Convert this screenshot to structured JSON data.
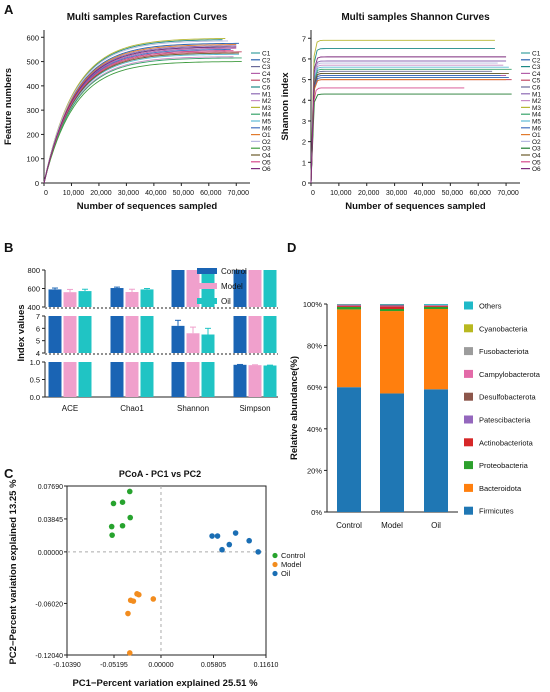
{
  "panel_letters": {
    "A": "A",
    "B": "B",
    "C": "C",
    "D": "D"
  },
  "chart_data": [
    {
      "panel": "A-left",
      "type": "line",
      "title": "Multi samples Rarefaction Curves",
      "xlabel": "Number of sequences sampled",
      "ylabel": "Feature numbers",
      "xticks": [
        "0",
        "10,000",
        "20,000",
        "30,000",
        "40,000",
        "50,000",
        "60,000",
        "70,000"
      ],
      "xtick_values": [
        0,
        10000,
        20000,
        30000,
        40000,
        50000,
        60000,
        70000
      ],
      "yticks": [
        "0",
        "100",
        "200",
        "300",
        "400",
        "500",
        "600"
      ],
      "ytick_values": [
        0,
        100,
        200,
        300,
        400,
        500,
        600
      ],
      "xlim": [
        0,
        75000
      ],
      "ylim": [
        0,
        630
      ],
      "series": [
        {
          "name": "C1",
          "color": "#3aa0a0",
          "max_x": 68000,
          "final": 560
        },
        {
          "name": "C2",
          "color": "#2a63b0",
          "max_x": 71000,
          "final": 575
        },
        {
          "name": "C3",
          "color": "#6a6a9a",
          "max_x": 66000,
          "final": 545
        },
        {
          "name": "C4",
          "color": "#b25fa9",
          "max_x": 70000,
          "final": 555
        },
        {
          "name": "C5",
          "color": "#c24a64",
          "max_x": 72000,
          "final": 540
        },
        {
          "name": "C6",
          "color": "#1d8a86",
          "max_x": 65000,
          "final": 590
        },
        {
          "name": "M1",
          "color": "#8e6ab4",
          "max_x": 70000,
          "final": 565
        },
        {
          "name": "M2",
          "color": "#c78cc5",
          "max_x": 69000,
          "final": 520
        },
        {
          "name": "M3",
          "color": "#b7b733",
          "max_x": 66000,
          "final": 595
        },
        {
          "name": "M4",
          "color": "#37a36a",
          "max_x": 72000,
          "final": 515
        },
        {
          "name": "M5",
          "color": "#5db9d4",
          "max_x": 71000,
          "final": 530
        },
        {
          "name": "M6",
          "color": "#436fbf",
          "max_x": 68000,
          "final": 550
        },
        {
          "name": "O1",
          "color": "#e17a2c",
          "max_x": 70000,
          "final": 570
        },
        {
          "name": "O2",
          "color": "#b8b8e0",
          "max_x": 67000,
          "final": 585
        },
        {
          "name": "O3",
          "color": "#3f9b3f",
          "max_x": 72000,
          "final": 500
        },
        {
          "name": "O4",
          "color": "#6b5a2a",
          "max_x": 71000,
          "final": 535
        },
        {
          "name": "O5",
          "color": "#d54a8c",
          "max_x": 69000,
          "final": 545
        },
        {
          "name": "O6",
          "color": "#7c2b7c",
          "max_x": 70000,
          "final": 560
        }
      ]
    },
    {
      "panel": "A-right",
      "type": "line",
      "title": "Multi samples Shannon Curves",
      "xlabel": "Number of sequences sampled",
      "ylabel": "Shannon index",
      "xticks": [
        "0",
        "10,000",
        "20,000",
        "30,000",
        "40,000",
        "50,000",
        "60,000",
        "70,000"
      ],
      "xtick_values": [
        0,
        10000,
        20000,
        30000,
        40000,
        50000,
        60000,
        70000
      ],
      "yticks": [
        "0",
        "1",
        "2",
        "3",
        "4",
        "5",
        "6",
        "7"
      ],
      "ytick_values": [
        0,
        1,
        2,
        3,
        4,
        5,
        6,
        7
      ],
      "xlim": [
        0,
        75000
      ],
      "ylim": [
        0,
        7.4
      ],
      "series": [
        {
          "name": "C1",
          "color": "#3aa0a0",
          "max_x": 68000,
          "final": 5.3
        },
        {
          "name": "C2",
          "color": "#2a63b0",
          "max_x": 71000,
          "final": 5.1
        },
        {
          "name": "C3",
          "color": "#1d8a86",
          "max_x": 66000,
          "final": 6.5
        },
        {
          "name": "C4",
          "color": "#b25fa9",
          "max_x": 70000,
          "final": 5.2
        },
        {
          "name": "C5",
          "color": "#c24a64",
          "max_x": 72000,
          "final": 5.0
        },
        {
          "name": "C6",
          "color": "#6a6a9a",
          "max_x": 65000,
          "final": 5.4
        },
        {
          "name": "M1",
          "color": "#8e6ab4",
          "max_x": 70000,
          "final": 5.9
        },
        {
          "name": "M2",
          "color": "#c78cc5",
          "max_x": 69000,
          "final": 5.7
        },
        {
          "name": "M3",
          "color": "#b7b733",
          "max_x": 66000,
          "final": 6.9
        },
        {
          "name": "M4",
          "color": "#37a36a",
          "max_x": 72000,
          "final": 5.5
        },
        {
          "name": "M5",
          "color": "#5db9d4",
          "max_x": 71000,
          "final": 5.6
        },
        {
          "name": "M6",
          "color": "#436fbf",
          "max_x": 68000,
          "final": 5.2
        },
        {
          "name": "O1",
          "color": "#e17a2c",
          "max_x": 70000,
          "final": 5.0
        },
        {
          "name": "O2",
          "color": "#b8b8e0",
          "max_x": 67000,
          "final": 5.8
        },
        {
          "name": "O3",
          "color": "#1f7a2f",
          "max_x": 72000,
          "final": 4.3
        },
        {
          "name": "O4",
          "color": "#6b5a2a",
          "max_x": 71000,
          "final": 5.3
        },
        {
          "name": "O5",
          "color": "#d54a8c",
          "max_x": 55000,
          "final": 4.6
        },
        {
          "name": "O6",
          "color": "#7c2b7c",
          "max_x": 70000,
          "final": 6.1
        }
      ]
    },
    {
      "panel": "B",
      "type": "bar",
      "ylabel": "Index values",
      "categories": [
        "ACE",
        "Chao1",
        "Shannon",
        "Simpson"
      ],
      "legend": [
        "Control",
        "Model",
        "Oil"
      ],
      "colors": [
        "#1a64b4",
        "#f0a0cc",
        "#20c4c4"
      ],
      "segments": [
        {
          "range": [
            400,
            800
          ],
          "ticks": [
            "400",
            "600",
            "800"
          ],
          "tick_values": [
            400,
            600,
            800
          ],
          "categories": [
            0,
            1
          ]
        },
        {
          "range": [
            4,
            7
          ],
          "ticks": [
            "4",
            "5",
            "6",
            "7"
          ],
          "tick_values": [
            4,
            5,
            6,
            7
          ],
          "categories": [
            2
          ]
        },
        {
          "range": [
            0.0,
            1.0
          ],
          "ticks": [
            "0.0",
            "0.5",
            "1.0"
          ],
          "tick_values": [
            0,
            0.5,
            1
          ],
          "categories": [
            3
          ]
        }
      ],
      "series": [
        {
          "name": "Control",
          "values": [
            590,
            605,
            6.2,
            0.92
          ],
          "errors": [
            15,
            10,
            0.45,
            0.01
          ]
        },
        {
          "name": "Model",
          "values": [
            560,
            562,
            5.6,
            0.91
          ],
          "errors": [
            30,
            30,
            0.5,
            0.01
          ]
        },
        {
          "name": "Oil",
          "values": [
            572,
            590,
            5.5,
            0.9
          ],
          "errors": [
            20,
            10,
            0.5,
            0.01
          ]
        }
      ]
    },
    {
      "panel": "C",
      "type": "scatter",
      "title": "PCoA - PC1 vs PC2",
      "xlabel": "PC1−Percent variation explained 25.51 %",
      "ylabel": "PC2−Percent variation explained 13.25 %",
      "xticks": [
        "-0.10390",
        "-0.05195",
        "0.00000",
        "0.05805",
        "0.11610"
      ],
      "xtick_values": [
        -0.1039,
        -0.05195,
        0.0,
        0.05805,
        0.1161
      ],
      "yticks": [
        "0.07690",
        "0.03845",
        "0.00000",
        "-0.06020",
        "-0.12040"
      ],
      "ytick_values": [
        0.0769,
        0.03845,
        0.0,
        -0.0602,
        -0.1204
      ],
      "xlim": [
        -0.1039,
        0.1161
      ],
      "ylim": [
        -0.1204,
        0.0769
      ],
      "legend": [
        "Control",
        "Model",
        "Oil"
      ],
      "colors": [
        "#27a32e",
        "#f28c1e",
        "#1a6eb4"
      ],
      "series": [
        {
          "name": "Control",
          "points": [
            [
              -0.0425,
              0.058
            ],
            [
              -0.0345,
              0.0705
            ],
            [
              -0.0425,
              0.0305
            ],
            [
              -0.0545,
              0.0295
            ],
            [
              -0.054,
              0.0195
            ],
            [
              -0.034,
              0.04
            ],
            [
              -0.0525,
              0.0565
            ]
          ]
        },
        {
          "name": "Model",
          "points": [
            [
              -0.0335,
              -0.0565
            ],
            [
              -0.0305,
              -0.0575
            ],
            [
              -0.0265,
              -0.049
            ],
            [
              -0.0245,
              -0.05
            ],
            [
              -0.0085,
              -0.055
            ],
            [
              -0.0365,
              -0.072
            ],
            [
              -0.0345,
              -0.118
            ]
          ]
        },
        {
          "name": "Oil",
          "points": [
            [
              0.0565,
              0.0185
            ],
            [
              0.0625,
              0.0185
            ],
            [
              0.0825,
              0.022
            ],
            [
              0.0975,
              0.013
            ],
            [
              0.0755,
              0.0085
            ],
            [
              0.0675,
              0.0025
            ],
            [
              0.1075,
              0.0
            ]
          ]
        }
      ]
    },
    {
      "panel": "D",
      "type": "bar",
      "stacked": true,
      "ylabel": "Relative abundance(%)",
      "categories": [
        "Control",
        "Model",
        "Oil"
      ],
      "yticks": [
        "0%",
        "20%",
        "40%",
        "60%",
        "80%",
        "100%"
      ],
      "ytick_values": [
        0,
        20,
        40,
        60,
        80,
        100
      ],
      "legend": [
        "Others",
        "Cyanobacteria",
        "Fusobacteriota",
        "Campylobacterota",
        "Desulfobacterota",
        "Patescibacteria",
        "Actinobacteriota",
        "Proteobacteria",
        "Bacteroidota",
        "Firmicutes"
      ],
      "legend_colors": [
        "#1fb9c8",
        "#b8b820",
        "#9c9c9c",
        "#e36aa8",
        "#8c564b",
        "#9467bd",
        "#d62728",
        "#2ca02c",
        "#ff7f0e",
        "#1f77b4"
      ],
      "series": [
        {
          "name": "Firmicutes",
          "values": [
            60,
            57,
            59
          ]
        },
        {
          "name": "Bacteroidota",
          "values": [
            37.4,
            39.6,
            38.6
          ]
        },
        {
          "name": "Proteobacteria",
          "values": [
            1.2,
            1.0,
            1.0
          ]
        },
        {
          "name": "Actinobacteriota",
          "values": [
            0.6,
            1.3,
            0.5
          ]
        },
        {
          "name": "Patescibacteria",
          "values": [
            0.4,
            0.4,
            0.3
          ]
        },
        {
          "name": "Desulfobacterota",
          "values": [
            0.2,
            0.4,
            0.2
          ]
        },
        {
          "name": "Campylobacterota",
          "values": [
            0,
            0,
            0
          ]
        },
        {
          "name": "Fusobacteriota",
          "values": [
            0,
            0,
            0
          ]
        },
        {
          "name": "Cyanobacteria",
          "values": [
            0,
            0,
            0
          ]
        },
        {
          "name": "Others",
          "values": [
            0.2,
            0.3,
            0.4
          ]
        }
      ]
    }
  ]
}
